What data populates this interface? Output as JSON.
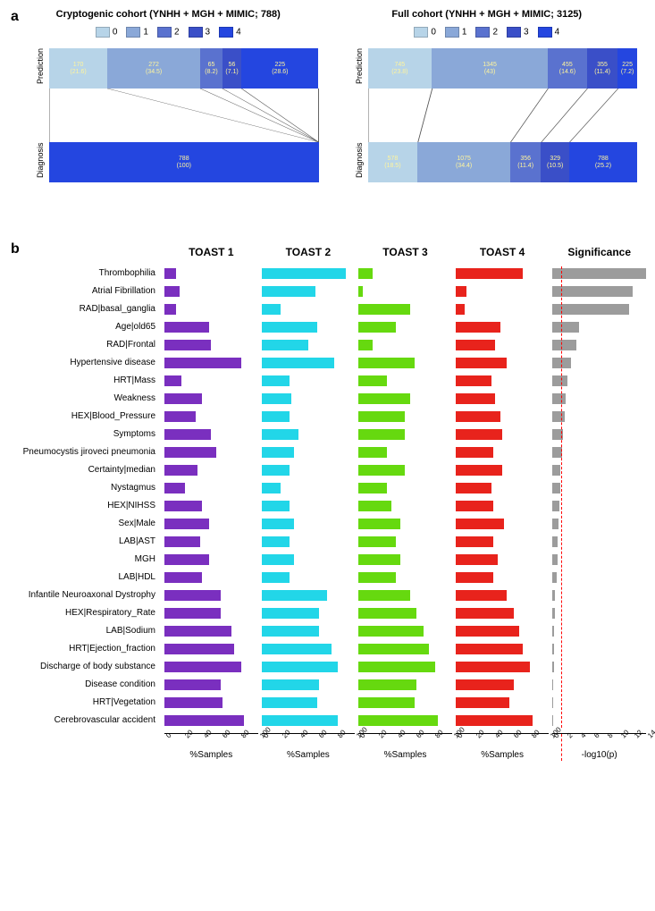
{
  "panel_a": {
    "label": "a",
    "left": {
      "title": "Cryptogenic cohort (YNHH + MGH + MIMIC; 788)",
      "legend": [
        "0",
        "1",
        "2",
        "3",
        "4"
      ],
      "legend_colors": [
        "#b7d4e8",
        "#8aa8d8",
        "#5a72cf",
        "#3a4fc8",
        "#2446e0"
      ],
      "prediction": [
        {
          "label": "170",
          "sub": "(21.6)",
          "pct": 21.6,
          "color": "#b7d4e8"
        },
        {
          "label": "272",
          "sub": "(34.5)",
          "pct": 34.5,
          "color": "#8aa8d8"
        },
        {
          "label": "65",
          "sub": "(8.2)",
          "pct": 8.2,
          "color": "#5a72cf"
        },
        {
          "label": "56",
          "sub": "(7.1)",
          "pct": 7.1,
          "color": "#3a4fc8"
        },
        {
          "label": "225",
          "sub": "(28.6)",
          "pct": 28.6,
          "color": "#2446e0"
        }
      ],
      "diagnosis": [
        {
          "label": "788",
          "sub": "(100)",
          "pct": 100,
          "color": "#2446e0"
        }
      ]
    },
    "right": {
      "title": "Full cohort (YNHH + MGH + MIMIC; 3125)",
      "legend": [
        "0",
        "1",
        "2",
        "3",
        "4"
      ],
      "legend_colors": [
        "#b7d4e8",
        "#8aa8d8",
        "#5a72cf",
        "#3a4fc8",
        "#2446e0"
      ],
      "prediction": [
        {
          "label": "745",
          "sub": "(23.8)",
          "pct": 23.8,
          "color": "#b7d4e8"
        },
        {
          "label": "1345",
          "sub": "(43)",
          "pct": 43.0,
          "color": "#8aa8d8"
        },
        {
          "label": "455",
          "sub": "(14.6)",
          "pct": 14.6,
          "color": "#5a72cf"
        },
        {
          "label": "355",
          "sub": "(11.4)",
          "pct": 11.4,
          "color": "#3a4fc8"
        },
        {
          "label": "225",
          "sub": "(7.2)",
          "pct": 7.2,
          "color": "#2446e0"
        }
      ],
      "diagnosis": [
        {
          "label": "578",
          "sub": "(18.5)",
          "pct": 18.5,
          "color": "#b7d4e8"
        },
        {
          "label": "1075",
          "sub": "(34.4)",
          "pct": 34.4,
          "color": "#8aa8d8"
        },
        {
          "label": "356",
          "sub": "(11.4)",
          "pct": 11.4,
          "color": "#5a72cf"
        },
        {
          "label": "329",
          "sub": "(10.5)",
          "pct": 10.5,
          "color": "#3a4fc8"
        },
        {
          "label": "788",
          "sub": "(25.2)",
          "pct": 25.2,
          "color": "#2446e0"
        }
      ]
    }
  },
  "panel_b": {
    "label": "b",
    "columns": [
      "TOAST 1",
      "TOAST 2",
      "TOAST 3",
      "TOAST 4",
      "Significance"
    ],
    "colors": [
      "#7a2fbf",
      "#22d6e8",
      "#66d90f",
      "#e8231c",
      "#9c9c9c"
    ],
    "x_max_pct": 100,
    "x_ticks_pct": [
      0,
      20,
      40,
      60,
      80,
      100
    ],
    "x_label_pct": "%Samples",
    "sig_max": 14,
    "sig_ticks": [
      0,
      2,
      4,
      6,
      8,
      10,
      12,
      14
    ],
    "sig_label": "-log10(p)",
    "sig_threshold": 1.3,
    "features": [
      {
        "name": "Thrombophilia",
        "v": [
          12,
          90,
          15,
          72
        ],
        "sig": 14
      },
      {
        "name": "Atrial Fibrillation",
        "v": [
          16,
          58,
          5,
          12
        ],
        "sig": 12
      },
      {
        "name": "RAD|basal_ganglia",
        "v": [
          12,
          20,
          55,
          10
        ],
        "sig": 11.5
      },
      {
        "name": "Age|old65",
        "v": [
          48,
          60,
          40,
          48
        ],
        "sig": 4
      },
      {
        "name": "RAD|Frontal",
        "v": [
          50,
          50,
          15,
          42
        ],
        "sig": 3.5
      },
      {
        "name": "Hypertensive disease",
        "v": [
          82,
          78,
          60,
          55
        ],
        "sig": 2.8
      },
      {
        "name": "HRT|Mass",
        "v": [
          18,
          30,
          30,
          38
        ],
        "sig": 2.2
      },
      {
        "name": "Weakness",
        "v": [
          40,
          32,
          55,
          42
        ],
        "sig": 2
      },
      {
        "name": "HEX|Blood_Pressure",
        "v": [
          33,
          30,
          50,
          48
        ],
        "sig": 1.8
      },
      {
        "name": "Symptoms",
        "v": [
          50,
          40,
          50,
          50
        ],
        "sig": 1.6
      },
      {
        "name": "Pneumocystis jiroveci pneumonia",
        "v": [
          55,
          35,
          30,
          40
        ],
        "sig": 1.4
      },
      {
        "name": "Certainty|median",
        "v": [
          35,
          30,
          50,
          50
        ],
        "sig": 1.2
      },
      {
        "name": "Nystagmus",
        "v": [
          22,
          20,
          30,
          38
        ],
        "sig": 1.1
      },
      {
        "name": "HEX|NIHSS",
        "v": [
          40,
          30,
          35,
          40
        ],
        "sig": 1.0
      },
      {
        "name": "Sex|Male",
        "v": [
          48,
          35,
          45,
          52
        ],
        "sig": 0.9
      },
      {
        "name": "LAB|AST",
        "v": [
          38,
          30,
          40,
          40
        ],
        "sig": 0.8
      },
      {
        "name": "MGH",
        "v": [
          48,
          35,
          45,
          45
        ],
        "sig": 0.7
      },
      {
        "name": "LAB|HDL",
        "v": [
          40,
          30,
          40,
          40
        ],
        "sig": 0.6
      },
      {
        "name": "Infantile Neuroaxonal Dystrophy",
        "v": [
          60,
          70,
          55,
          55
        ],
        "sig": 0.4
      },
      {
        "name": "HEX|Respiratory_Rate",
        "v": [
          60,
          62,
          62,
          62
        ],
        "sig": 0.3
      },
      {
        "name": "LAB|Sodium",
        "v": [
          72,
          62,
          70,
          68
        ],
        "sig": 0.25
      },
      {
        "name": "HRT|Ejection_fraction",
        "v": [
          75,
          75,
          75,
          72
        ],
        "sig": 0.2
      },
      {
        "name": "Discharge of body substance",
        "v": [
          82,
          82,
          82,
          80
        ],
        "sig": 0.15
      },
      {
        "name": "Disease condition",
        "v": [
          60,
          62,
          62,
          62
        ],
        "sig": 0.12
      },
      {
        "name": "HRT|Vegetation",
        "v": [
          62,
          60,
          60,
          58
        ],
        "sig": 0.1
      },
      {
        "name": "Cerebrovascular accident",
        "v": [
          85,
          82,
          85,
          82
        ],
        "sig": 0.05
      }
    ]
  }
}
